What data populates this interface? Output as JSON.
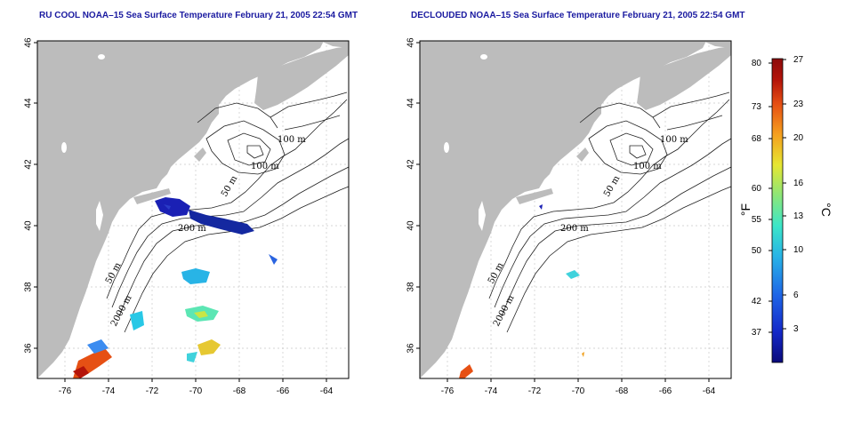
{
  "maps": [
    {
      "id": "left",
      "title": "RU COOL NOAA–15 Sea Surface Temperature February 21, 2005 22:54 GMT",
      "lat_ticks": [
        "46",
        "44",
        "42",
        "40",
        "38",
        "36"
      ],
      "lon_ticks": [
        "-76",
        "-74",
        "-72",
        "-70",
        "-68",
        "-66",
        "-64"
      ],
      "contour_labels": [
        "100 m",
        "100 m",
        "50 m",
        "200 m",
        "50 m",
        "2000 m"
      ]
    },
    {
      "id": "right",
      "title": "DECLOUDED NOAA–15 Sea Surface Temperature February 21, 2005 22:54 GMT",
      "lat_ticks": [
        "46",
        "44",
        "42",
        "40",
        "38",
        "36"
      ],
      "lon_ticks": [
        "-76",
        "-74",
        "-72",
        "-70",
        "-68",
        "-66",
        "-64"
      ],
      "contour_labels": [
        "100 m",
        "100 m",
        "50 m",
        "200 m",
        "50 m",
        "2000 m"
      ]
    }
  ],
  "colorbar": {
    "fahrenheit_ticks": [
      "80",
      "73",
      "68",
      "60",
      "55",
      "50",
      "42",
      "37"
    ],
    "celsius_ticks": [
      "27",
      "23",
      "20",
      "16",
      "13",
      "10",
      "6",
      "3"
    ],
    "fahrenheit_unit": "°F",
    "celsius_unit": "°C",
    "colors": [
      "#0a0a7a",
      "#1428c8",
      "#1e64e6",
      "#28b4e6",
      "#3ce6c8",
      "#8ce678",
      "#e6e632",
      "#f5a01e",
      "#e65014",
      "#b4140a",
      "#8c0a0a"
    ]
  },
  "colors": {
    "land": "#bcbcbc",
    "ocean": "#ffffff",
    "grid": "#c8c8c8",
    "title": "#1a1aa0"
  }
}
